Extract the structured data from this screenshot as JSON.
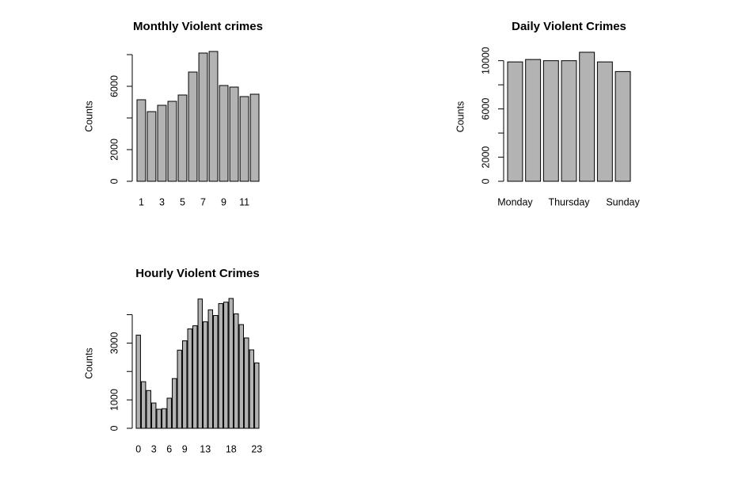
{
  "chart_data": [
    {
      "type": "bar",
      "title": "Monthly Violent  crimes",
      "ylabel": "Counts",
      "color": "#b3b3b3",
      "categories": [
        "1",
        null,
        "3",
        null,
        "5",
        null,
        "7",
        null,
        "9",
        null,
        "11",
        null
      ],
      "values": [
        5150,
        4400,
        4800,
        5050,
        5450,
        6900,
        8100,
        8200,
        6050,
        5950,
        5350,
        5500
      ],
      "ylim": [
        0,
        8200
      ],
      "yticks": [
        0,
        2000,
        {
          "value": 4000,
          "label": null
        },
        6000,
        {
          "value": 8000,
          "label": null
        }
      ]
    },
    {
      "type": "bar",
      "title": "Daily  Violent  Crimes",
      "ylabel": "Counts",
      "color": "#b3b3b3",
      "categories": [
        "Monday",
        null,
        null,
        "Thursday",
        null,
        null,
        "Sunday"
      ],
      "values": [
        9900,
        10100,
        10000,
        10000,
        10700,
        9900,
        9100
      ],
      "ylim": [
        0,
        10700
      ],
      "yticks": [
        0,
        2000,
        {
          "value": 4000,
          "label": null
        },
        6000,
        {
          "value": 8000,
          "label": null
        },
        10000
      ]
    },
    {
      "type": "bar",
      "title": "Hourly  Violent  Crimes",
      "ylabel": "Counts",
      "color": "#b3b3b3",
      "categories": [
        "0",
        null,
        null,
        "3",
        null,
        null,
        "6",
        null,
        null,
        "9",
        null,
        null,
        null,
        "13",
        null,
        null,
        null,
        null,
        "18",
        null,
        null,
        null,
        null,
        "23"
      ],
      "values": [
        3280,
        1640,
        1330,
        890,
        670,
        690,
        1060,
        1750,
        2750,
        3080,
        3500,
        3610,
        4550,
        3750,
        4170,
        3970,
        4390,
        4440,
        4570,
        4030,
        3650,
        3180,
        2760,
        2300
      ],
      "ylim": [
        0,
        4570
      ],
      "yticks": [
        0,
        1000,
        {
          "value": 2000,
          "label": null
        },
        3000,
        {
          "value": 4000,
          "label": null
        }
      ]
    }
  ]
}
